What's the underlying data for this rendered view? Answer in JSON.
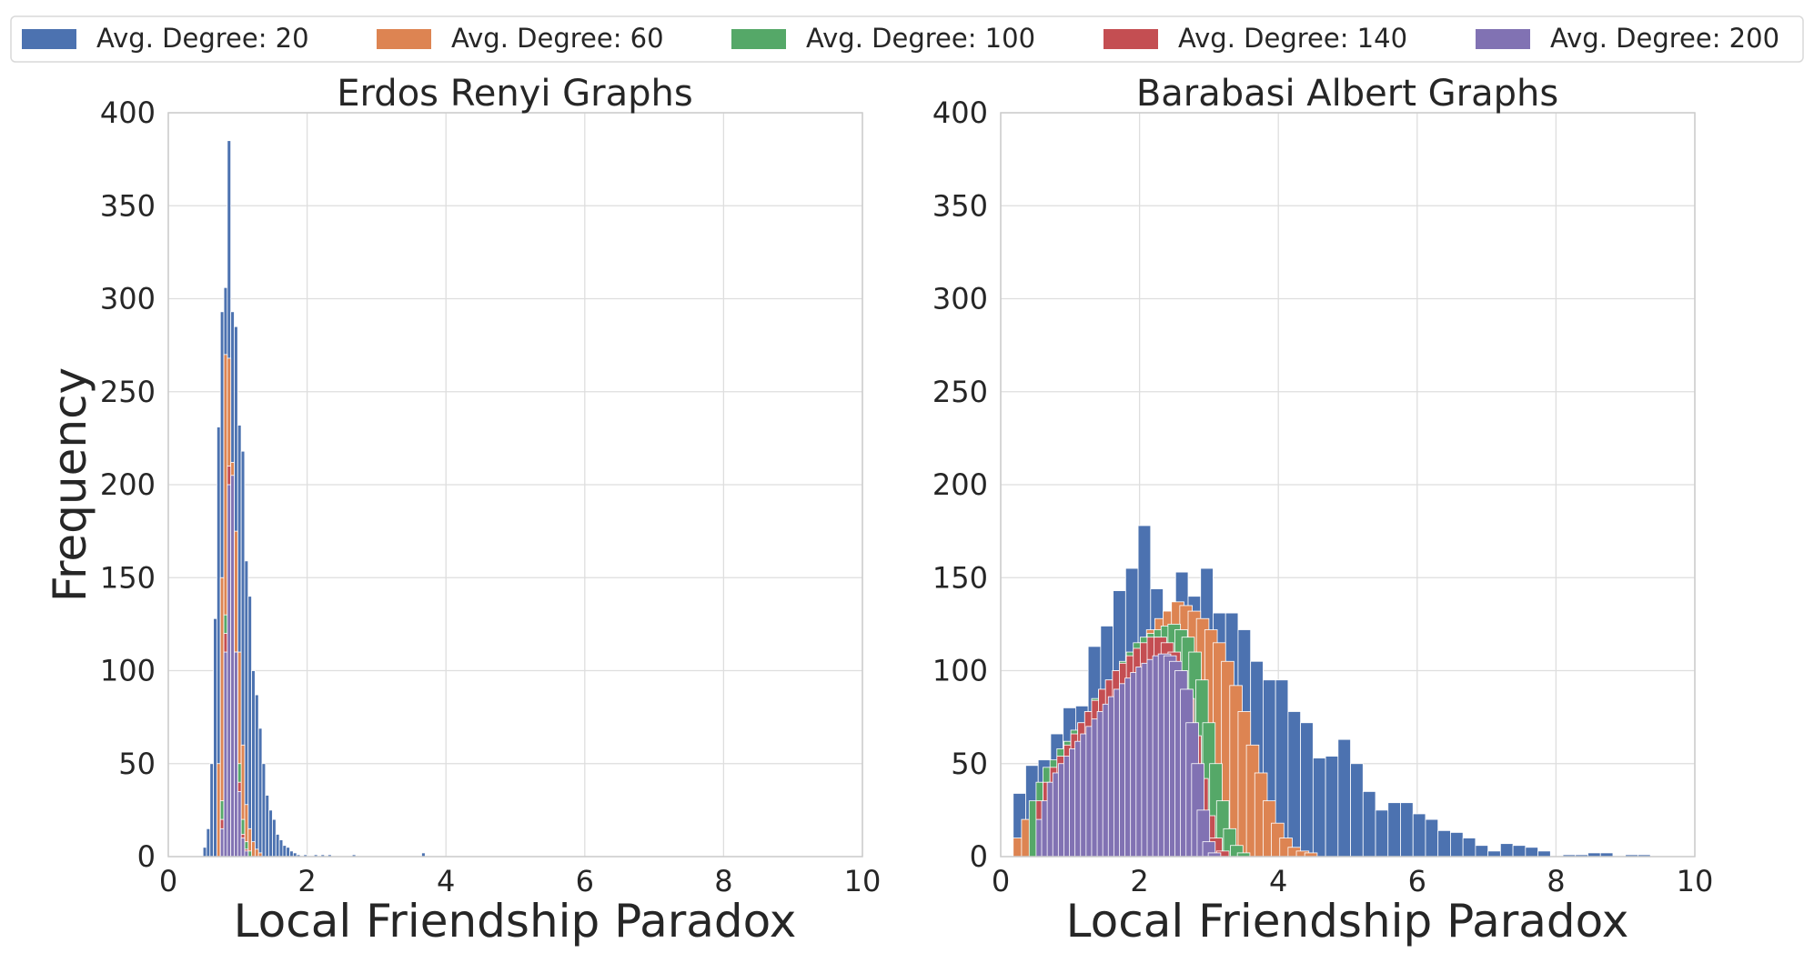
{
  "legend": {
    "placement": "top",
    "entries": [
      {
        "label": "Avg. Degree: 20",
        "color": "#4c72b0"
      },
      {
        "label": "Avg. Degree: 60",
        "color": "#dd8452"
      },
      {
        "label": "Avg. Degree: 100",
        "color": "#55a868"
      },
      {
        "label": "Avg. Degree: 140",
        "color": "#c44e52"
      },
      {
        "label": "Avg. Degree: 200",
        "color": "#8172b3"
      }
    ]
  },
  "chart_data": [
    {
      "type": "bar",
      "title": "Erdos Renyi Graphs",
      "xlabel": "Local Friendship Paradox",
      "ylabel": "Frequency",
      "xlim": [
        0,
        10
      ],
      "ylim": [
        0,
        400
      ],
      "xticks": [
        "0",
        "2",
        "4",
        "6",
        "8",
        "10"
      ],
      "yticks": [
        "0",
        "50",
        "100",
        "150",
        "200",
        "250",
        "300",
        "350",
        "400"
      ],
      "grid": true,
      "bin_width": 0.05,
      "series": [
        {
          "color": "#4c72b0",
          "bins": [
            [
              0.525,
              5
            ],
            [
              0.575,
              15
            ],
            [
              0.625,
              50
            ],
            [
              0.675,
              128
            ],
            [
              0.725,
              231
            ],
            [
              0.775,
              293
            ],
            [
              0.825,
              306
            ],
            [
              0.875,
              385
            ],
            [
              0.925,
              293
            ],
            [
              0.975,
              285
            ],
            [
              1.025,
              232
            ],
            [
              1.075,
              218
            ],
            [
              1.125,
              159
            ],
            [
              1.175,
              140
            ],
            [
              1.225,
              100
            ],
            [
              1.275,
              87
            ],
            [
              1.325,
              69
            ],
            [
              1.375,
              50
            ],
            [
              1.425,
              33
            ],
            [
              1.475,
              25
            ],
            [
              1.525,
              20
            ],
            [
              1.575,
              12
            ],
            [
              1.625,
              9
            ],
            [
              1.675,
              6
            ],
            [
              1.725,
              5
            ],
            [
              1.775,
              3
            ],
            [
              1.825,
              2
            ],
            [
              1.875,
              1
            ],
            [
              1.975,
              1
            ],
            [
              2.125,
              1
            ],
            [
              2.225,
              1
            ],
            [
              2.325,
              1
            ],
            [
              2.675,
              1
            ],
            [
              3.675,
              2
            ]
          ]
        },
        {
          "color": "#dd8452",
          "bins": [
            [
              0.725,
              50
            ],
            [
              0.775,
              150
            ],
            [
              0.825,
              270
            ],
            [
              0.875,
              268
            ],
            [
              0.925,
              212
            ],
            [
              0.975,
              175
            ],
            [
              1.025,
              110
            ],
            [
              1.075,
              60
            ],
            [
              1.125,
              28
            ],
            [
              1.175,
              15
            ],
            [
              1.225,
              8
            ],
            [
              1.275,
              4
            ],
            [
              1.325,
              2
            ]
          ]
        },
        {
          "color": "#55a868",
          "bins": [
            [
              0.775,
              30
            ],
            [
              0.825,
              130
            ],
            [
              0.875,
              200
            ],
            [
              0.925,
              180
            ],
            [
              0.975,
              110
            ],
            [
              1.025,
              50
            ],
            [
              1.075,
              20
            ],
            [
              1.125,
              8
            ],
            [
              1.175,
              3
            ]
          ]
        },
        {
          "color": "#c44e52",
          "bins": [
            [
              0.775,
              20
            ],
            [
              0.825,
              120
            ],
            [
              0.875,
              210
            ],
            [
              0.925,
              190
            ],
            [
              0.975,
              100
            ],
            [
              1.025,
              40
            ],
            [
              1.075,
              12
            ],
            [
              1.125,
              4
            ]
          ]
        },
        {
          "color": "#8172b3",
          "bins": [
            [
              0.775,
              15
            ],
            [
              0.825,
              110
            ],
            [
              0.875,
              200
            ],
            [
              0.925,
              205
            ],
            [
              0.975,
              110
            ],
            [
              1.025,
              35
            ],
            [
              1.075,
              10
            ],
            [
              1.125,
              3
            ]
          ]
        }
      ]
    },
    {
      "type": "bar",
      "title": "Barabasi Albert Graphs",
      "xlabel": "Local Friendship Paradox",
      "ylabel": "",
      "xlim": [
        0,
        10
      ],
      "ylim": [
        0,
        400
      ],
      "xticks": [
        "0",
        "2",
        "4",
        "6",
        "8",
        "10"
      ],
      "yticks": [
        "0",
        "50",
        "100",
        "150",
        "200",
        "250",
        "300",
        "350",
        "400"
      ],
      "grid": true,
      "bin_width": 0.18,
      "series": [
        {
          "color": "#4c72b0",
          "bins": [
            [
              0.27,
              34
            ],
            [
              0.45,
              49
            ],
            [
              0.63,
              52
            ],
            [
              0.81,
              66
            ],
            [
              0.99,
              80
            ],
            [
              1.17,
              81
            ],
            [
              1.35,
              113
            ],
            [
              1.53,
              124
            ],
            [
              1.71,
              143
            ],
            [
              1.89,
              155
            ],
            [
              2.07,
              178
            ],
            [
              2.25,
              144
            ],
            [
              2.43,
              118
            ],
            [
              2.61,
              153
            ],
            [
              2.79,
              140
            ],
            [
              2.97,
              155
            ],
            [
              3.15,
              131
            ],
            [
              3.33,
              131
            ],
            [
              3.51,
              122
            ],
            [
              3.69,
              105
            ],
            [
              3.87,
              95
            ],
            [
              4.05,
              95
            ],
            [
              4.23,
              78
            ],
            [
              4.41,
              72
            ],
            [
              4.59,
              53
            ],
            [
              4.77,
              54
            ],
            [
              4.95,
              63
            ],
            [
              5.13,
              50
            ],
            [
              5.31,
              35
            ],
            [
              5.49,
              25
            ],
            [
              5.67,
              29
            ],
            [
              5.85,
              29
            ],
            [
              6.03,
              23
            ],
            [
              6.21,
              20
            ],
            [
              6.39,
              14
            ],
            [
              6.57,
              13
            ],
            [
              6.75,
              10
            ],
            [
              6.93,
              6
            ],
            [
              7.11,
              3
            ],
            [
              7.29,
              7
            ],
            [
              7.47,
              6
            ],
            [
              7.65,
              5
            ],
            [
              7.83,
              3
            ],
            [
              8.19,
              1
            ],
            [
              8.37,
              1
            ],
            [
              8.55,
              2
            ],
            [
              8.73,
              2
            ],
            [
              9.09,
              1
            ],
            [
              9.27,
              1
            ]
          ]
        },
        {
          "color": "#dd8452",
          "bins": [
            [
              0.27,
              10
            ],
            [
              0.39,
              20
            ],
            [
              0.51,
              25
            ],
            [
              0.63,
              30
            ],
            [
              0.75,
              33
            ],
            [
              0.87,
              40
            ],
            [
              0.99,
              50
            ],
            [
              1.11,
              60
            ],
            [
              1.23,
              65
            ],
            [
              1.35,
              72
            ],
            [
              1.47,
              80
            ],
            [
              1.59,
              88
            ],
            [
              1.71,
              95
            ],
            [
              1.83,
              100
            ],
            [
              1.95,
              108
            ],
            [
              2.07,
              115
            ],
            [
              2.19,
              122
            ],
            [
              2.31,
              128
            ],
            [
              2.43,
              132
            ],
            [
              2.55,
              137
            ],
            [
              2.67,
              135
            ],
            [
              2.79,
              132
            ],
            [
              2.91,
              128
            ],
            [
              3.03,
              122
            ],
            [
              3.15,
              115
            ],
            [
              3.27,
              105
            ],
            [
              3.39,
              92
            ],
            [
              3.51,
              78
            ],
            [
              3.63,
              60
            ],
            [
              3.75,
              45
            ],
            [
              3.87,
              30
            ],
            [
              3.99,
              18
            ],
            [
              4.11,
              10
            ],
            [
              4.23,
              5
            ],
            [
              4.35,
              3
            ],
            [
              4.47,
              2
            ]
          ]
        },
        {
          "color": "#55a868",
          "bins": [
            [
              0.5,
              30
            ],
            [
              0.6,
              40
            ],
            [
              0.7,
              48
            ],
            [
              0.8,
              52
            ],
            [
              0.9,
              58
            ],
            [
              1.0,
              62
            ],
            [
              1.1,
              68
            ],
            [
              1.2,
              72
            ],
            [
              1.3,
              78
            ],
            [
              1.4,
              85
            ],
            [
              1.5,
              90
            ],
            [
              1.6,
              95
            ],
            [
              1.7,
              100
            ],
            [
              1.8,
              105
            ],
            [
              1.9,
              110
            ],
            [
              2.0,
              115
            ],
            [
              2.1,
              118
            ],
            [
              2.2,
              120
            ],
            [
              2.3,
              122
            ],
            [
              2.4,
              124
            ],
            [
              2.5,
              125
            ],
            [
              2.6,
              122
            ],
            [
              2.7,
              118
            ],
            [
              2.8,
              110
            ],
            [
              2.9,
              95
            ],
            [
              3.0,
              72
            ],
            [
              3.1,
              50
            ],
            [
              3.2,
              30
            ],
            [
              3.3,
              15
            ],
            [
              3.4,
              6
            ],
            [
              3.5,
              2
            ]
          ]
        },
        {
          "color": "#c44e52",
          "bins": [
            [
              0.6,
              30
            ],
            [
              0.7,
              40
            ],
            [
              0.8,
              48
            ],
            [
              0.9,
              54
            ],
            [
              1.0,
              60
            ],
            [
              1.1,
              66
            ],
            [
              1.2,
              72
            ],
            [
              1.3,
              78
            ],
            [
              1.4,
              84
            ],
            [
              1.5,
              90
            ],
            [
              1.6,
              95
            ],
            [
              1.7,
              100
            ],
            [
              1.8,
              104
            ],
            [
              1.9,
              108
            ],
            [
              2.0,
              112
            ],
            [
              2.1,
              115
            ],
            [
              2.2,
              118
            ],
            [
              2.3,
              118
            ],
            [
              2.4,
              115
            ],
            [
              2.5,
              110
            ],
            [
              2.6,
              100
            ],
            [
              2.7,
              85
            ],
            [
              2.8,
              65
            ],
            [
              2.9,
              42
            ],
            [
              3.0,
              22
            ],
            [
              3.1,
              10
            ],
            [
              3.2,
              3
            ]
          ]
        },
        {
          "color": "#8172b3",
          "bins": [
            [
              0.6,
              20
            ],
            [
              0.68,
              30
            ],
            [
              0.76,
              40
            ],
            [
              0.84,
              45
            ],
            [
              0.92,
              50
            ],
            [
              1.0,
              54
            ],
            [
              1.08,
              58
            ],
            [
              1.16,
              62
            ],
            [
              1.24,
              66
            ],
            [
              1.32,
              70
            ],
            [
              1.4,
              74
            ],
            [
              1.48,
              78
            ],
            [
              1.56,
              82
            ],
            [
              1.64,
              86
            ],
            [
              1.72,
              90
            ],
            [
              1.8,
              93
            ],
            [
              1.88,
              96
            ],
            [
              1.96,
              99
            ],
            [
              2.04,
              102
            ],
            [
              2.12,
              104
            ],
            [
              2.2,
              106
            ],
            [
              2.28,
              108
            ],
            [
              2.36,
              109
            ],
            [
              2.44,
              108
            ],
            [
              2.52,
              105
            ],
            [
              2.6,
              100
            ],
            [
              2.68,
              90
            ],
            [
              2.76,
              72
            ],
            [
              2.84,
              50
            ],
            [
              2.92,
              25
            ],
            [
              3.0,
              8
            ],
            [
              3.08,
              2
            ]
          ]
        }
      ]
    }
  ]
}
